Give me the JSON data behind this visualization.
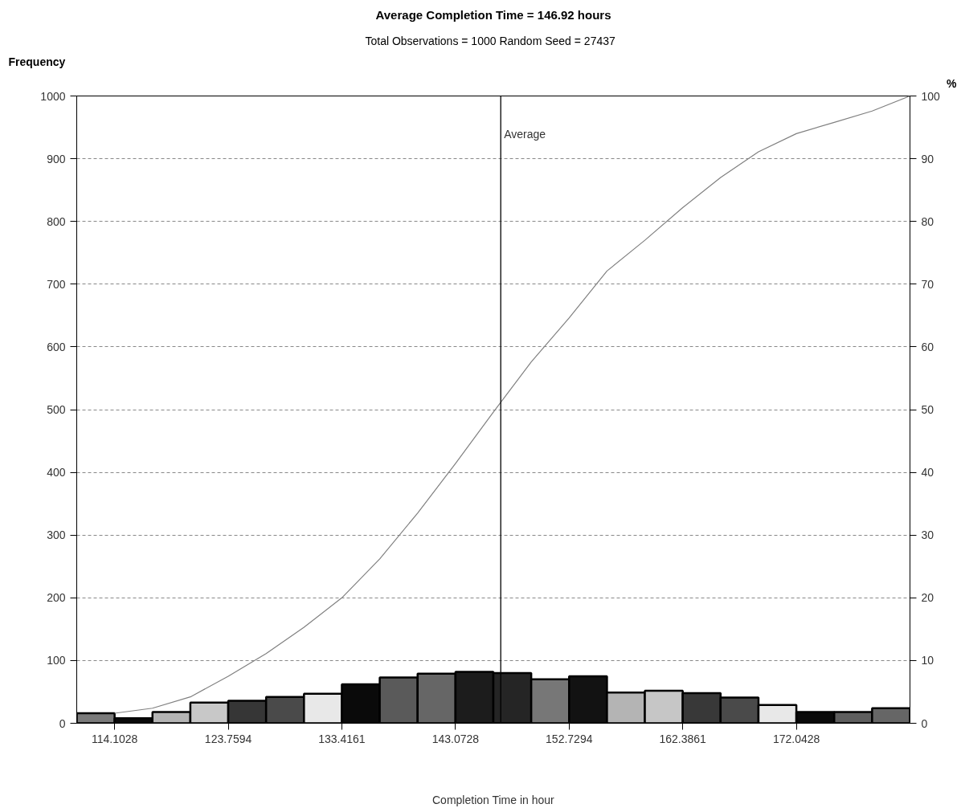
{
  "chart_data": {
    "type": "histogram",
    "title": "Average Completion Time = 146.92 hours",
    "subtitle": "Total Observations = 1000   Random Seed = 27437",
    "xlabel": "Completion Time in hour",
    "ylabel": "Frequency",
    "y2label": "%",
    "bins": [
      110.8839,
      114.1028,
      117.3217,
      120.5405,
      123.7594,
      126.9783,
      130.1972,
      133.4161,
      136.635,
      139.8539,
      143.0728,
      146.2916,
      149.5105,
      152.7294,
      155.9483,
      159.1672,
      162.3861,
      165.605,
      168.8239,
      172.0428,
      175.2616,
      178.4805,
      181.6994
    ],
    "series": [
      {
        "values": [
          16,
          8,
          18,
          33,
          36,
          42,
          47,
          62,
          73,
          79,
          82,
          80,
          70,
          75,
          49,
          52,
          48,
          41,
          29,
          18,
          18,
          24
        ],
        "colors": [
          "#7a7a7a",
          "#0a0a0a",
          "#b4b4b4",
          "#c8c8c8",
          "#363636",
          "#4a4a4a",
          "#e8e8e8",
          "#0a0a0a",
          "#5a5a5a",
          "#666666",
          "#1c1c1c",
          "#252525",
          "#777777",
          "#121212",
          "#b4b4b4",
          "#c6c6c6",
          "#383838",
          "#4a4a4a",
          "#e8e8e8",
          "#0a0a0a",
          "#5e5e5e",
          "#666666"
        ]
      },
      {
        "type": "line",
        "axis": "y2",
        "color": "#808080",
        "x": [
          114.1028,
          117.3217,
          120.5405,
          123.7594,
          126.9783,
          130.1972,
          133.4161,
          136.635,
          139.8539,
          143.0728,
          146.2916,
          149.5105,
          152.7294,
          155.9483,
          159.1672,
          162.3861,
          165.605,
          168.8239,
          172.0428,
          175.2616,
          178.4805,
          181.6994
        ],
        "values": [
          1.6,
          2.4,
          4.2,
          7.5,
          11.1,
          15.3,
          20.0,
          26.2,
          33.5,
          41.4,
          49.6,
          57.6,
          64.6,
          72.1,
          77.0,
          82.2,
          87.0,
          91.1,
          94.0,
          95.8,
          97.6,
          100
        ]
      }
    ],
    "xlim": [
      110.8839,
      181.6994
    ],
    "xticks": [
      114.1028,
      123.7594,
      133.4161,
      143.0728,
      152.7294,
      162.3861,
      172.0428
    ],
    "ylim": [
      0,
      1000
    ],
    "yticks": [
      0,
      100,
      200,
      300,
      400,
      500,
      600,
      700,
      800,
      900,
      1000
    ],
    "y2lim": [
      0,
      100
    ],
    "y2ticks": [
      0,
      10,
      20,
      30,
      40,
      50,
      60,
      70,
      80,
      90,
      100
    ],
    "grid": "y",
    "ref_lines": [
      {
        "axis": "x",
        "value": 146.92,
        "label": "Average",
        "color": "#000000"
      }
    ]
  }
}
